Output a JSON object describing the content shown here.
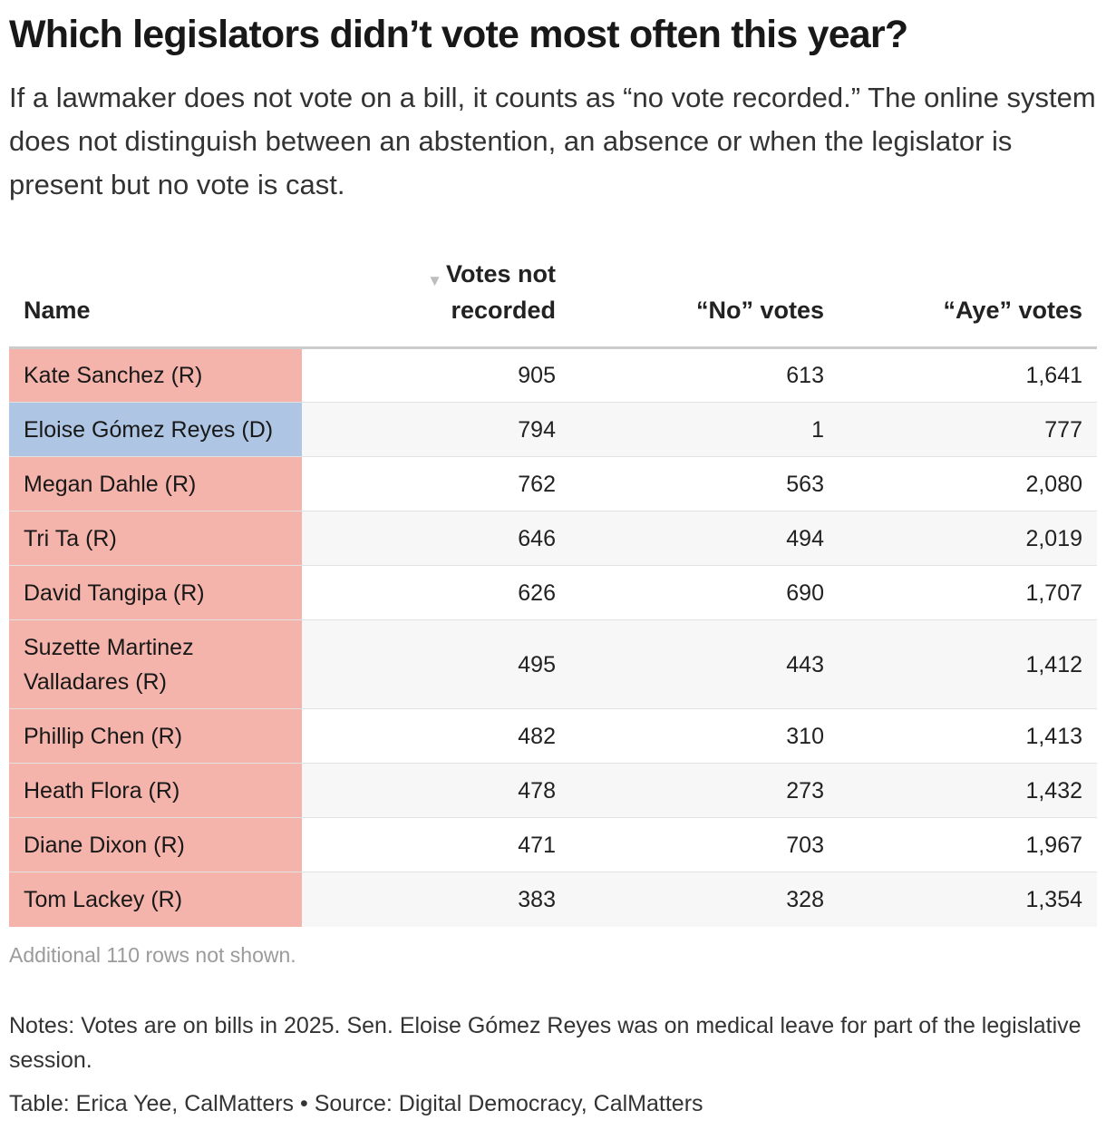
{
  "title": "Which legislators didn’t vote most often this year?",
  "subtitle": "If a lawmaker does not vote on a bill, it counts as “no vote recorded.” The online system does not distinguish between an abstention, an absence or when the legislator is present but no vote is cast.",
  "table": {
    "sort_icon": "sort-descending-icon",
    "headers": {
      "name": "Name",
      "not_recorded_line1": "Votes not",
      "not_recorded_line2": "recorded",
      "no_votes": "“No” votes",
      "aye_votes": "“Aye” votes"
    }
  },
  "party_colors": {
    "R": "#f4b4ab",
    "D": "#aec5e4"
  },
  "chart_data": {
    "type": "table",
    "title": "Which legislators didn’t vote most often this year?",
    "columns": [
      "Name",
      "Votes not recorded",
      "“No” votes",
      "“Aye” votes"
    ],
    "sorted_by": "Votes not recorded",
    "sort_order": "descending",
    "rows": [
      {
        "name": "Kate Sanchez (R)",
        "party": "R",
        "not_recorded": "905",
        "no": "613",
        "aye": "1,641"
      },
      {
        "name": "Eloise Gómez Reyes (D)",
        "party": "D",
        "not_recorded": "794",
        "no": "1",
        "aye": "777"
      },
      {
        "name": "Megan Dahle (R)",
        "party": "R",
        "not_recorded": "762",
        "no": "563",
        "aye": "2,080"
      },
      {
        "name": "Tri Ta (R)",
        "party": "R",
        "not_recorded": "646",
        "no": "494",
        "aye": "2,019"
      },
      {
        "name": "David Tangipa (R)",
        "party": "R",
        "not_recorded": "626",
        "no": "690",
        "aye": "1,707"
      },
      {
        "name": "Suzette Martinez Valladares (R)",
        "party": "R",
        "not_recorded": "495",
        "no": "443",
        "aye": "1,412"
      },
      {
        "name": "Phillip Chen (R)",
        "party": "R",
        "not_recorded": "482",
        "no": "310",
        "aye": "1,413"
      },
      {
        "name": "Heath Flora (R)",
        "party": "R",
        "not_recorded": "478",
        "no": "273",
        "aye": "1,432"
      },
      {
        "name": "Diane Dixon (R)",
        "party": "R",
        "not_recorded": "471",
        "no": "703",
        "aye": "1,967"
      },
      {
        "name": "Tom Lackey (R)",
        "party": "R",
        "not_recorded": "383",
        "no": "328",
        "aye": "1,354"
      }
    ]
  },
  "more_rows": "Additional 110 rows not shown.",
  "notes": "Notes: Votes are on bills in 2025. Sen. Eloise Gómez Reyes was on medical leave for part of the legislative session.",
  "credit": "Table: Erica Yee, CalMatters • Source: Digital Democracy, CalMatters"
}
